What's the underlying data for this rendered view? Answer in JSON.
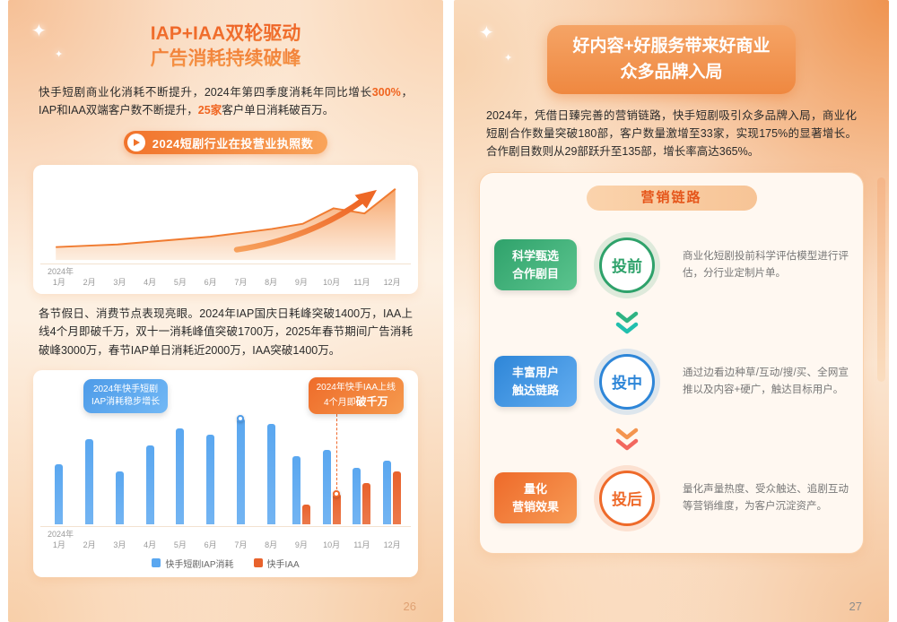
{
  "icons": {
    "sparkle_icon": "✦",
    "play_icon": "play-triangle"
  },
  "left_page": {
    "title_line1": "IAP+IAA双轮驱动",
    "title_line2": "广告消耗持续破峰",
    "para1": {
      "seg1": "快手短剧商业化消耗不断提升，2024年第四季度消耗年同比增长",
      "hl1": "300%",
      "seg2": "，IAP和IAA双端客户数不断提升，",
      "hl2": "25家",
      "seg3": "客户单日消耗破百万。"
    },
    "badge_label": "2024短剧行业在投营业执照数",
    "para2": "各节假日、消费节点表现亮眼。2024年IAP国庆日耗峰突破1400万，IAA上线4个月即破千万，双十一消耗峰值突破1700万，2025年春节期间广告消耗破峰3000万，春节IAP单日消耗近2000万，IAA突破1400万。",
    "page_number": "26"
  },
  "right_page": {
    "title_line1": "好内容+好服务带来好商业",
    "title_line2": "众多品牌入局",
    "para": "2024年，凭借日臻完善的营销链路，快手短剧吸引众多品牌入局，商业化短剧合作数量突破180部，客户数量激增至33家，实现175%的显著增长。合作剧目数则从29部跃升至135部，增长率高达365%。",
    "funnel": {
      "header": "营销链路",
      "stages": [
        {
          "label_line1": "科学甄选",
          "label_line2": "合作剧目",
          "circle": "投前",
          "desc": "商业化短剧投前科学评估模型进行评估，分行业定制片单。",
          "color": "#2fa26b",
          "color_light": "#5bc48e"
        },
        {
          "label_line1": "丰富用户",
          "label_line2": "触达链路",
          "circle": "投中",
          "desc": "通过边看边种草/互动/搜/买、全网宣推以及内容+硬广，触达目标用户。",
          "color": "#2e86d8",
          "color_light": "#63adf0"
        },
        {
          "label_line1": "量化",
          "label_line2": "营销效果",
          "circle": "投后",
          "desc": "量化声量热度、受众触达、追剧互动等营销维度，为客户沉淀资产。",
          "color": "#ee6a2a",
          "color_light": "#f79b55"
        }
      ]
    },
    "page_number": "27"
  },
  "chart_data": [
    {
      "type": "area",
      "title": "2024短剧行业在投营业执照数",
      "x_year_label": "2024年",
      "x": [
        "1月",
        "2月",
        "3月",
        "4月",
        "5月",
        "6月",
        "7月",
        "8月",
        "9月",
        "10月",
        "11月",
        "12月"
      ],
      "values": [
        10,
        11,
        12,
        14,
        16,
        18,
        21,
        24,
        28,
        40,
        36,
        55
      ],
      "ylabel": "",
      "grid": false,
      "line_color": "#f07b30"
    },
    {
      "type": "bar",
      "x_year_label": "2024年",
      "categories": [
        "1月",
        "2月",
        "3月",
        "4月",
        "5月",
        "6月",
        "7月",
        "8月",
        "9月",
        "10月",
        "11月",
        "12月"
      ],
      "series": [
        {
          "name": "快手短剧IAP消耗",
          "color": "#5aa7f0",
          "values": [
            55,
            78,
            48,
            72,
            88,
            82,
            97,
            92,
            62,
            68,
            52,
            58
          ]
        },
        {
          "name": "快手IAA",
          "color": "#e8622c",
          "values": [
            0,
            0,
            0,
            0,
            0,
            0,
            0,
            0,
            18,
            28,
            38,
            48
          ]
        }
      ],
      "annotations": [
        {
          "line1": "2024年快手短剧",
          "line2": "IAP消耗稳步增长",
          "color": "#4d9be8",
          "target_index": 6,
          "target_series": 0
        },
        {
          "line1": "2024年快手IAA上线",
          "line2": "4个月即",
          "line2_bold": "破千万",
          "color": "#f0682a",
          "target_index": 9,
          "target_series": 1
        }
      ],
      "legend_position": "bottom"
    }
  ]
}
